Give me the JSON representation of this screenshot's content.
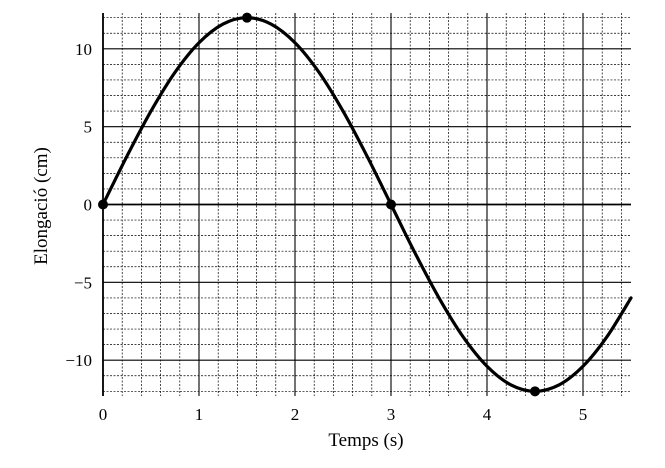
{
  "chart_data": {
    "type": "line",
    "title": "",
    "xlabel": "Temps (s)",
    "ylabel": "Elongació (cm)",
    "xlim": [
      0,
      5.5
    ],
    "ylim": [
      -12.3,
      12.3
    ],
    "x_ticks": [
      0,
      1,
      2,
      3,
      4,
      5
    ],
    "x_tick_labels": [
      "0",
      "1",
      "2",
      "3",
      "4",
      "5"
    ],
    "y_ticks": [
      10,
      5,
      0,
      -5,
      -10
    ],
    "y_tick_labels": [
      "10",
      "5",
      "0",
      "−5",
      "−10"
    ],
    "grid": {
      "major": true,
      "minor": true,
      "minor_x_step": 0.2,
      "minor_y_step": 1
    },
    "series": [
      {
        "x": [
          0,
          0.25,
          0.5,
          0.75,
          1,
          1.25,
          1.5,
          1.75,
          2,
          2.25,
          2.5,
          2.75,
          3,
          3.25,
          3.5,
          3.75,
          4,
          4.25,
          4.5,
          4.75,
          5,
          5.25,
          5.5
        ],
        "y": [
          0,
          3.11,
          6,
          8.49,
          10.39,
          11.59,
          12,
          11.59,
          10.39,
          8.49,
          6,
          3.11,
          0,
          -3.11,
          -6,
          -8.49,
          -10.39,
          -11.59,
          -12,
          -11.59,
          -10.39,
          -8.49,
          -6
        ]
      }
    ],
    "marked_points": [
      {
        "x": 0,
        "y": 0
      },
      {
        "x": 1.5,
        "y": 12
      },
      {
        "x": 3,
        "y": 0
      },
      {
        "x": 4.5,
        "y": -12
      }
    ],
    "line_color": "#000000",
    "grid_color": "#000000"
  }
}
